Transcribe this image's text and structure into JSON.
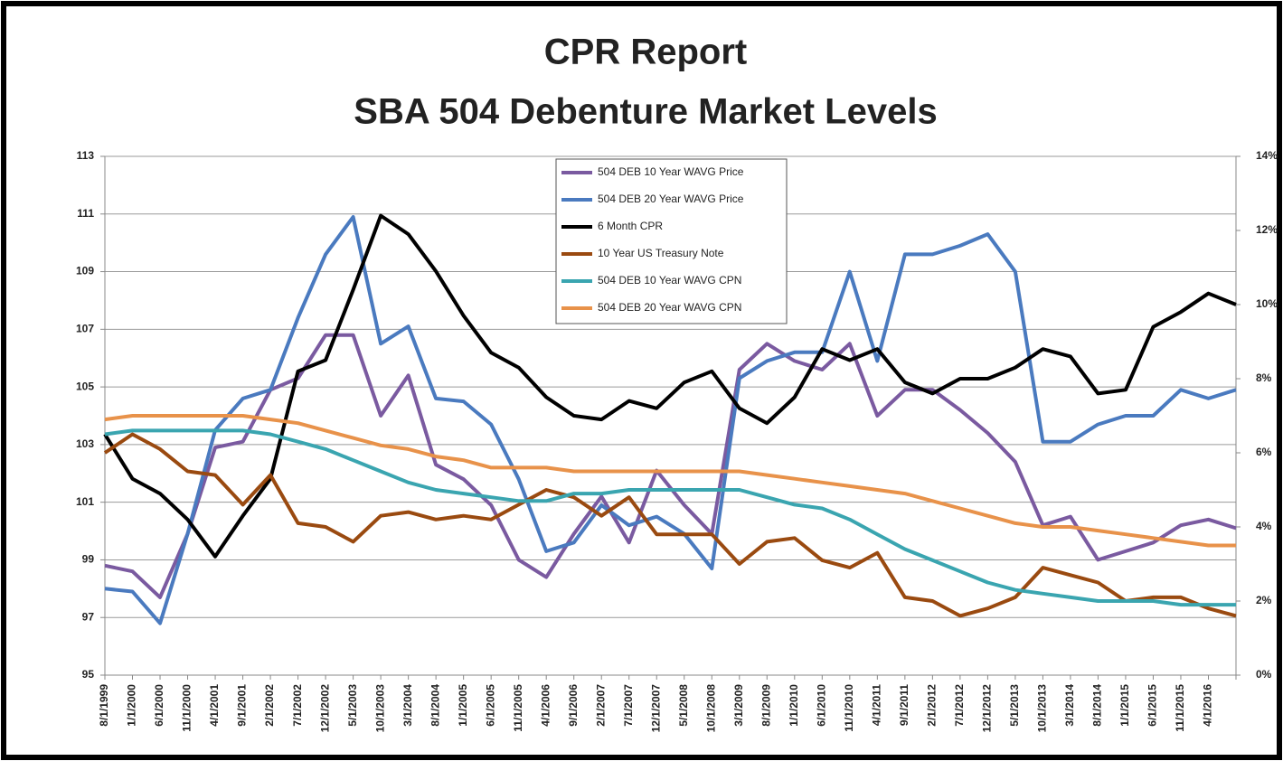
{
  "chart_data": {
    "type": "line",
    "title": "CPR Report",
    "subtitle": "SBA 504 Debenture Market Levels",
    "categories": [
      "8/1/1999",
      "1/1/2000",
      "6/1/2000",
      "11/1/2000",
      "4/1/2001",
      "9/1/2001",
      "2/1/2002",
      "7/1/2002",
      "12/1/2002",
      "5/1/2003",
      "10/1/2003",
      "3/1/2004",
      "8/1/2004",
      "1/1/2005",
      "6/1/2005",
      "11/1/2005",
      "4/1/2006",
      "9/1/2006",
      "2/1/2007",
      "7/1/2007",
      "12/1/2007",
      "5/1/2008",
      "10/1/2008",
      "3/1/2009",
      "8/1/2009",
      "1/1/2010",
      "6/1/2010",
      "11/1/2010",
      "4/1/2011",
      "9/1/2011",
      "2/1/2012",
      "7/1/2012",
      "12/1/2012",
      "5/1/2013",
      "10/1/2013",
      "3/1/2014",
      "8/1/2014",
      "1/1/2015",
      "6/1/2015",
      "11/1/2015",
      "4/1/2016",
      null
    ],
    "series": [
      {
        "name": "504 DEB 10 Year WAVG Price",
        "color": "#7a5aa0",
        "axis": "y",
        "values": [
          98.8,
          98.6,
          97.7,
          99.9,
          102.9,
          103.1,
          104.9,
          105.3,
          106.8,
          106.8,
          104.0,
          105.4,
          102.3,
          101.8,
          100.9,
          99.0,
          98.4,
          99.9,
          101.2,
          99.6,
          102.1,
          100.9,
          99.9,
          105.6,
          106.5,
          105.9,
          105.6,
          106.5,
          104.0,
          104.9,
          104.9,
          104.2,
          103.4,
          102.4,
          100.2,
          100.5,
          99.0,
          99.3,
          99.6,
          100.2,
          100.4,
          100.1
        ]
      },
      {
        "name": "504 DEB 20 Year WAVG Price",
        "color": "#4a7abf",
        "axis": "y",
        "values": [
          98.0,
          97.9,
          96.8,
          99.9,
          103.5,
          104.6,
          104.9,
          107.4,
          109.6,
          110.9,
          106.5,
          107.1,
          104.6,
          104.5,
          103.7,
          101.8,
          99.3,
          99.6,
          100.9,
          100.2,
          100.5,
          99.9,
          98.7,
          105.3,
          105.9,
          106.2,
          106.2,
          109.0,
          105.9,
          109.6,
          109.6,
          109.9,
          110.3,
          109.0,
          103.1,
          103.1,
          103.7,
          104.0,
          104.0,
          104.9,
          104.6,
          104.9
        ]
      },
      {
        "name": "6 Month CPR",
        "color": "#000000",
        "axis": "y2",
        "values": [
          6.5,
          5.3,
          4.9,
          4.2,
          3.2,
          4.3,
          5.3,
          8.2,
          8.5,
          10.4,
          12.4,
          11.9,
          10.9,
          9.7,
          8.7,
          8.3,
          7.5,
          7.0,
          6.9,
          7.4,
          7.2,
          7.9,
          8.2,
          7.2,
          6.8,
          7.5,
          8.8,
          8.5,
          8.8,
          7.9,
          7.6,
          8.0,
          8.0,
          8.3,
          8.8,
          8.6,
          7.6,
          7.7,
          9.4,
          9.8,
          10.3,
          10.0
        ]
      },
      {
        "name": "10 Year US Treasury Note",
        "color": "#9a4a10",
        "axis": "y2",
        "values": [
          6.0,
          6.5,
          6.1,
          5.5,
          5.4,
          4.6,
          5.4,
          4.1,
          4.0,
          3.6,
          4.3,
          4.4,
          4.2,
          4.3,
          4.2,
          4.6,
          5.0,
          4.8,
          4.3,
          4.8,
          3.8,
          3.8,
          3.8,
          3.0,
          3.6,
          3.7,
          3.1,
          2.9,
          3.3,
          2.1,
          2.0,
          1.6,
          1.8,
          2.1,
          2.9,
          2.7,
          2.5,
          2.0,
          2.1,
          2.1,
          1.8,
          1.6
        ]
      },
      {
        "name": "504 DEB 10 Year WAVG CPN",
        "color": "#3aa5b0",
        "axis": "y2",
        "values": [
          6.5,
          6.6,
          6.6,
          6.6,
          6.6,
          6.6,
          6.5,
          6.3,
          6.1,
          5.8,
          5.5,
          5.2,
          5.0,
          4.9,
          4.8,
          4.7,
          4.7,
          4.9,
          4.9,
          5.0,
          5.0,
          5.0,
          5.0,
          5.0,
          4.8,
          4.6,
          4.5,
          4.2,
          3.8,
          3.4,
          3.1,
          2.8,
          2.5,
          2.3,
          2.2,
          2.1,
          2.0,
          2.0,
          2.0,
          1.9,
          1.9,
          1.9
        ]
      },
      {
        "name": "504 DEB 20 Year WAVG CPN",
        "color": "#e8924a",
        "axis": "y2",
        "values": [
          6.9,
          7.0,
          7.0,
          7.0,
          7.0,
          7.0,
          6.9,
          6.8,
          6.6,
          6.4,
          6.2,
          6.1,
          5.9,
          5.8,
          5.6,
          5.6,
          5.6,
          5.5,
          5.5,
          5.5,
          5.5,
          5.5,
          5.5,
          5.5,
          5.4,
          5.3,
          5.2,
          5.1,
          5.0,
          4.9,
          4.7,
          4.5,
          4.3,
          4.1,
          4.0,
          4.0,
          3.9,
          3.8,
          3.7,
          3.6,
          3.5,
          3.5
        ]
      }
    ],
    "ylim": [
      95,
      113
    ],
    "yticks": [
      95,
      97,
      99,
      101,
      103,
      105,
      107,
      109,
      111,
      113
    ],
    "y2lim": [
      0,
      14
    ],
    "y2ticks": [
      {
        "value": 0,
        "label": "0%"
      },
      {
        "value": 2,
        "label": "2%"
      },
      {
        "value": 4,
        "label": "4%"
      },
      {
        "value": 6,
        "label": "6%"
      },
      {
        "value": 8,
        "label": "8%"
      },
      {
        "value": 10,
        "label": "10%"
      },
      {
        "value": 12,
        "label": "12%"
      },
      {
        "value": 14,
        "label": "14%"
      }
    ],
    "grid": true,
    "legend": "top-center"
  }
}
